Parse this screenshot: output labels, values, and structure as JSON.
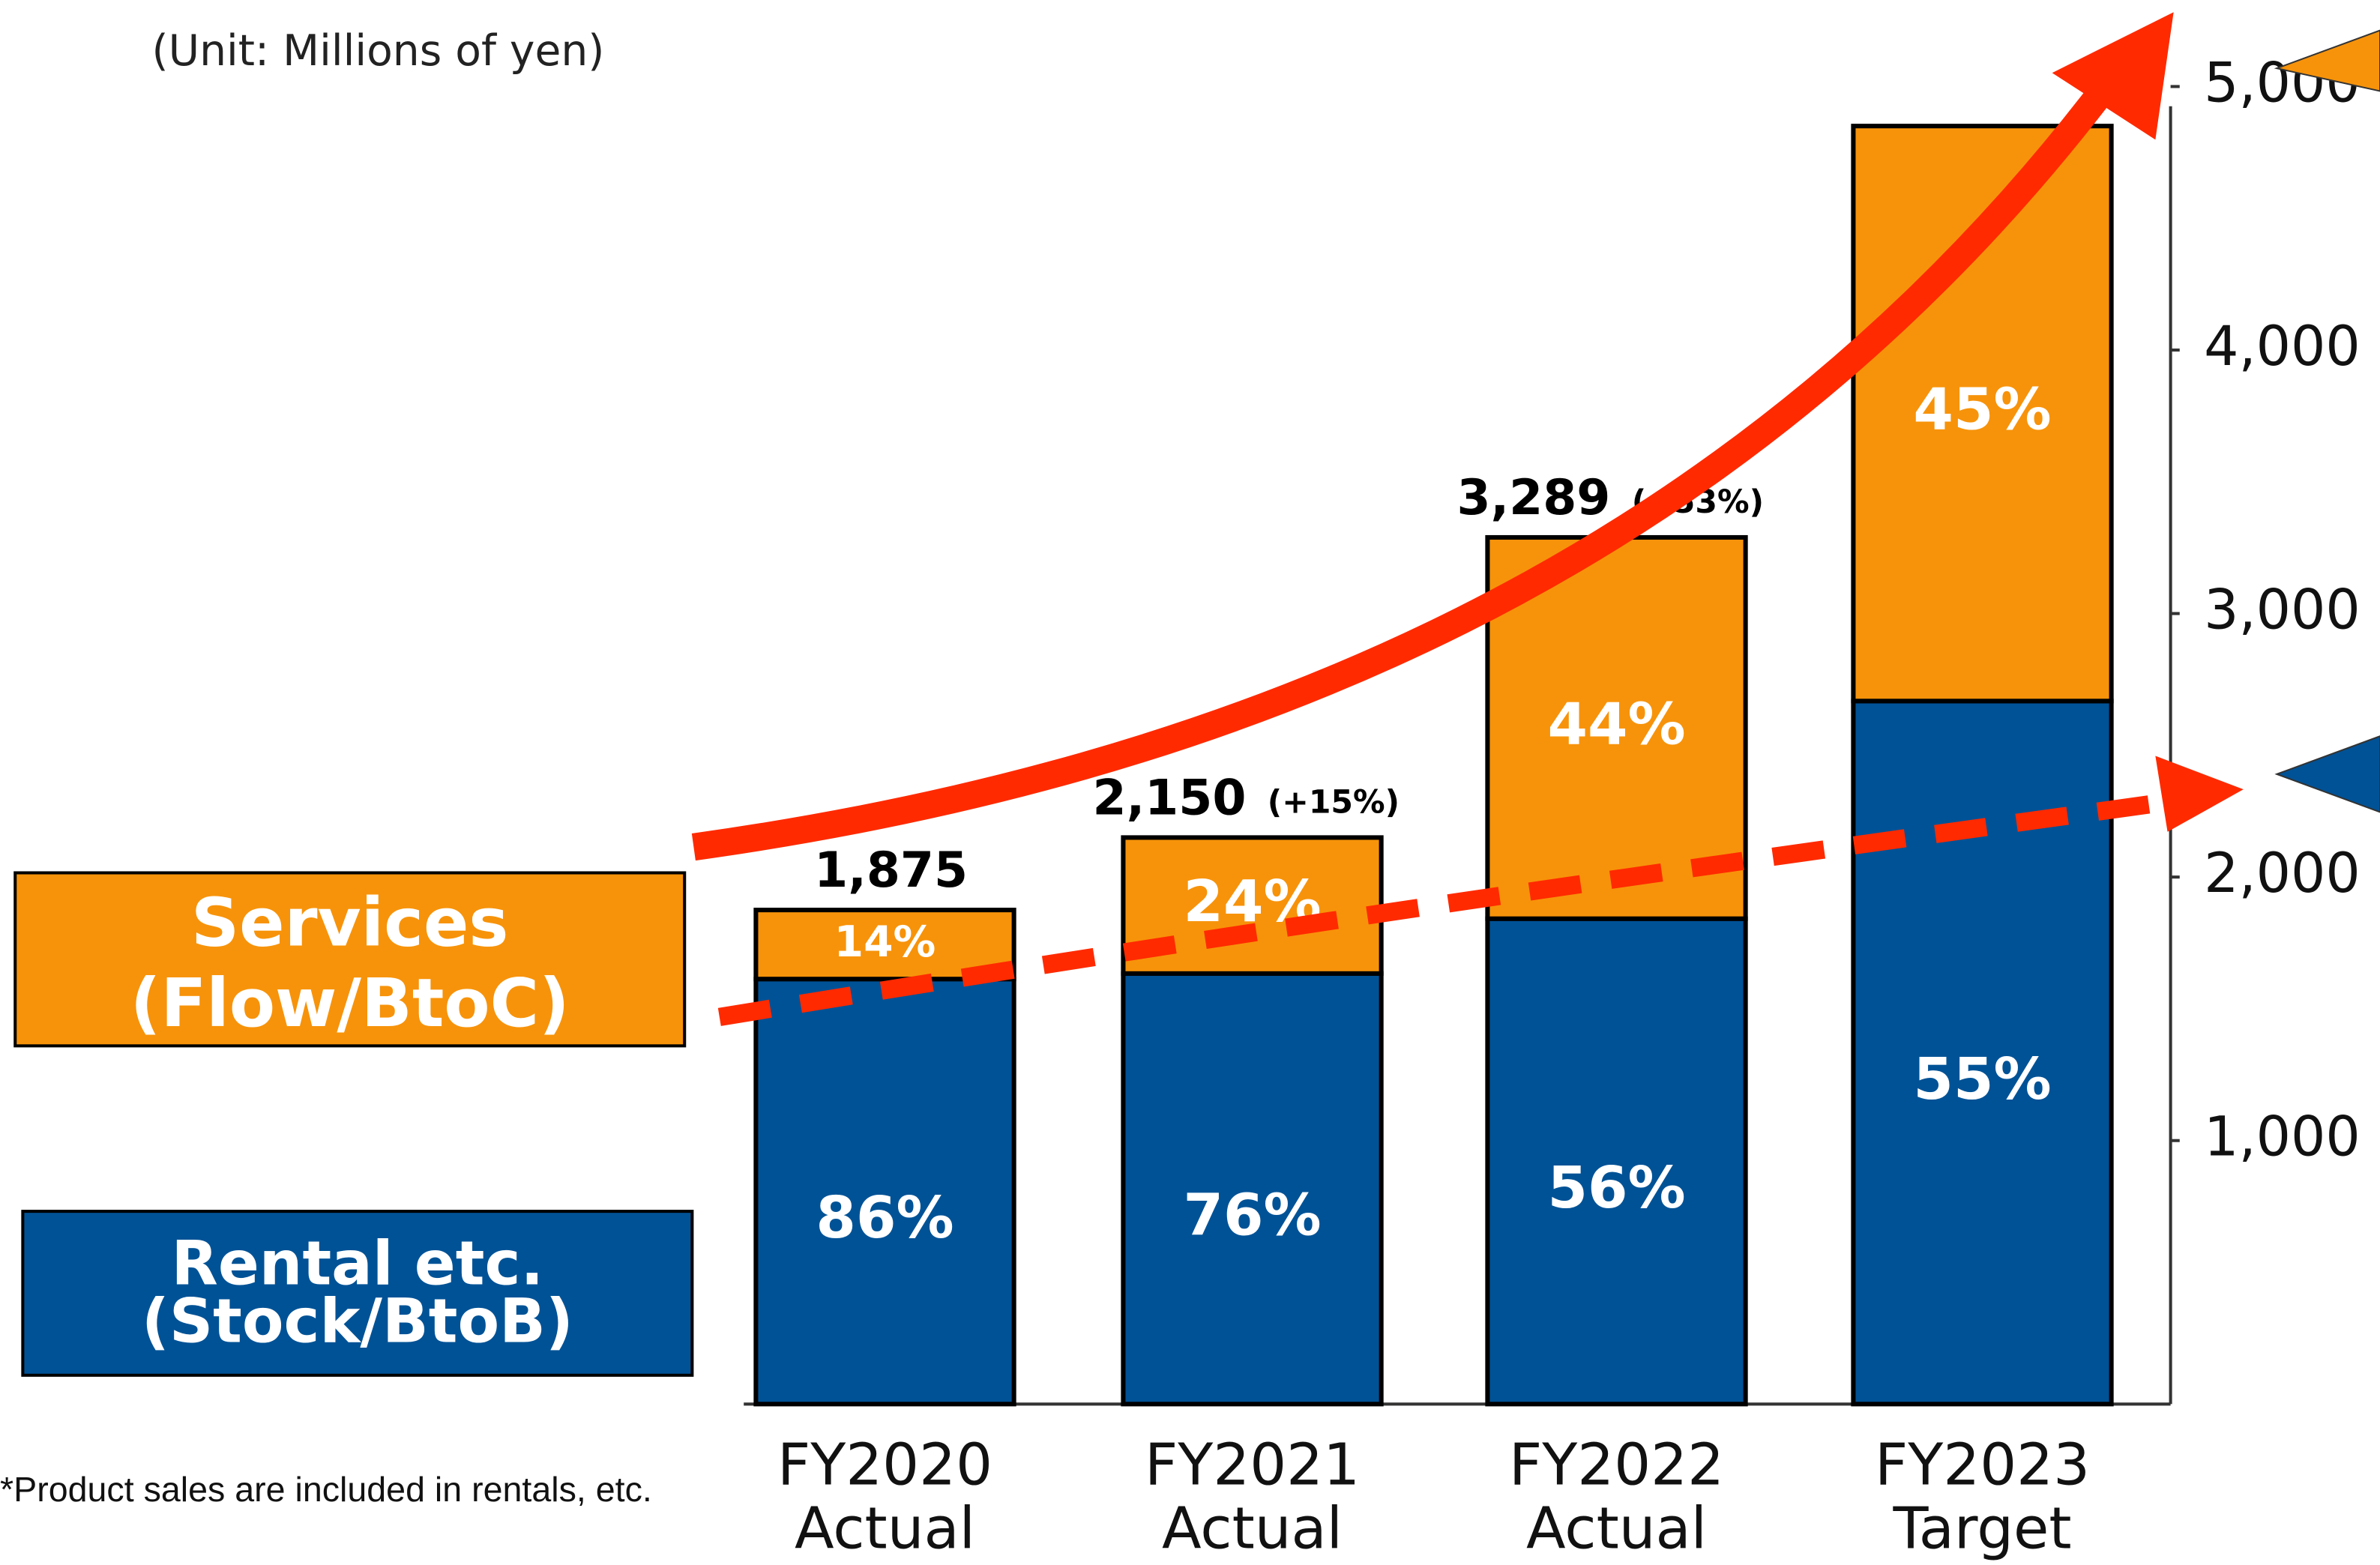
{
  "chart_data": {
    "type": "bar",
    "stacked": true,
    "unit_note": "(Unit: Millions of yen)",
    "footnote": "*Product sales are included in rentals, etc.",
    "categories": [
      "FY2020\nActual",
      "FY2021\nActual",
      "FY2022\nActual",
      "FY2023\nTarget"
    ],
    "series": [
      {
        "name": "Rental etc.\n(Stock/BtoB)",
        "color": "#005296",
        "values": [
          1613,
          1634,
          1842,
          2668
        ],
        "share_labels": [
          "86%",
          "76%",
          "56%",
          "55%"
        ]
      },
      {
        "name": "Services\n(Flow/BtoC)",
        "color": "#f7930a",
        "values": [
          262,
          516,
          1447,
          2182
        ],
        "share_labels": [
          "14%",
          "24%",
          "44%",
          "45%"
        ]
      }
    ],
    "total_labels": [
      "1,875",
      "2,150",
      "3,289"
    ],
    "growth_labels": [
      null,
      "(+15%)",
      "(+53%)"
    ],
    "ylim": [
      0,
      5000
    ],
    "yticks": [
      {
        "value": 1000,
        "label": "1,000"
      },
      {
        "value": 2000,
        "label": "2,000"
      },
      {
        "value": 3000,
        "label": "3,000"
      },
      {
        "value": 4000,
        "label": "4,000"
      },
      {
        "value": 5000,
        "label": "5,000"
      }
    ]
  }
}
